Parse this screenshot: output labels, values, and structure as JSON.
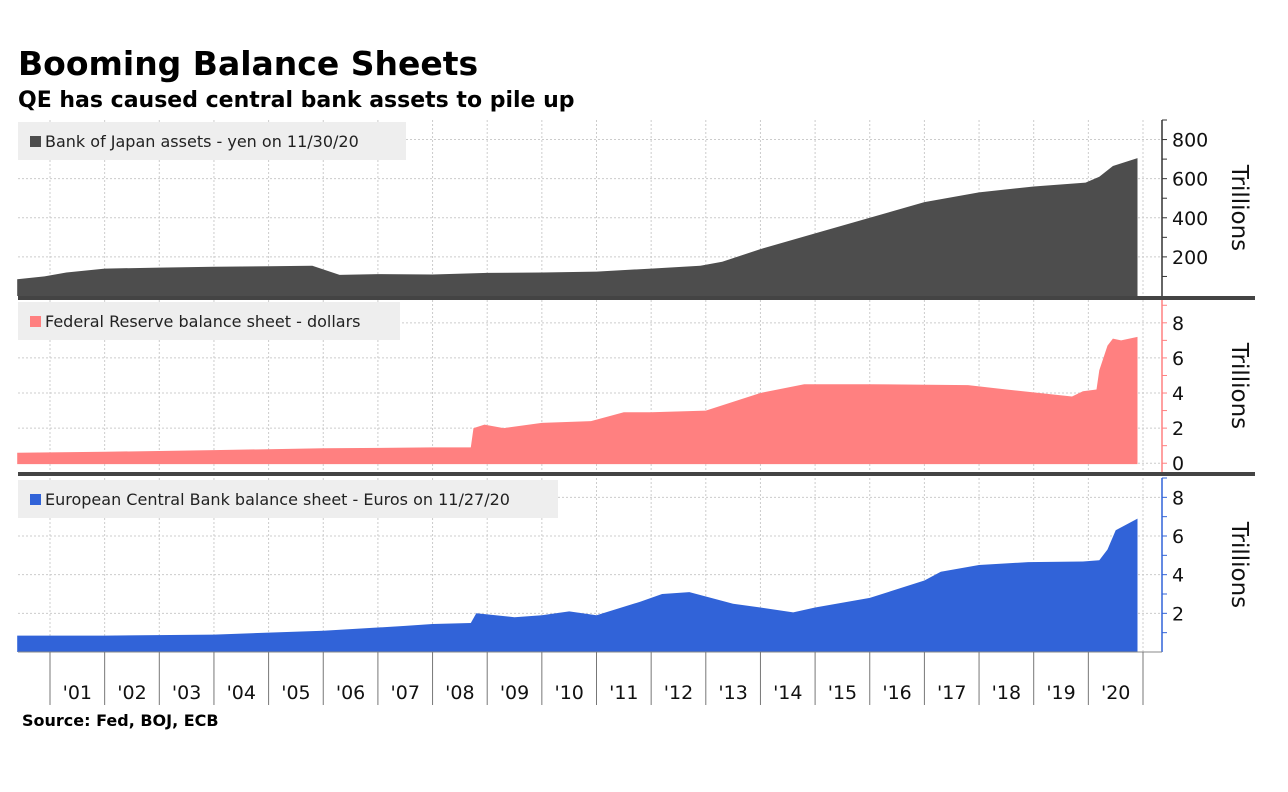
{
  "title": "Booming Balance Sheets",
  "subtitle": "QE has caused central bank assets to pile up",
  "source": "Source: Fed, BOJ, ECB",
  "chart_data": [
    {
      "type": "area",
      "legend": "Bank of Japan assets - yen on 11/30/20",
      "unit_label": "Trillions",
      "color": "#4d4d4d",
      "axis_color": "#333333",
      "ylim": [
        0,
        900
      ],
      "yticks": [
        200,
        400,
        600,
        800
      ],
      "grid": true,
      "x": [
        2000.4,
        2000.9,
        2001.3,
        2002.0,
        2003.0,
        2004.0,
        2005.0,
        2005.8,
        2006.3,
        2007.0,
        2008.0,
        2009.0,
        2010.0,
        2011.0,
        2012.0,
        2012.9,
        2013.3,
        2014.0,
        2015.0,
        2016.0,
        2017.0,
        2018.0,
        2019.0,
        2019.95,
        2020.2,
        2020.45,
        2020.9
      ],
      "values": [
        86,
        100,
        120,
        140,
        145,
        150,
        152,
        155,
        108,
        112,
        110,
        118,
        120,
        125,
        140,
        155,
        175,
        240,
        320,
        400,
        480,
        530,
        560,
        580,
        610,
        665,
        705
      ]
    },
    {
      "type": "area",
      "legend": "Federal Reserve balance sheet - dollars",
      "unit_label": "Trillions",
      "color": "#ff8080",
      "axis_color": "#ff8080",
      "ylim": [
        -0.5,
        9.3
      ],
      "yticks": [
        0,
        2,
        4,
        6,
        8
      ],
      "grid": true,
      "x": [
        2000.4,
        2002.0,
        2004.0,
        2006.0,
        2008.0,
        2008.7,
        2008.75,
        2008.95,
        2009.3,
        2010.0,
        2010.9,
        2011.5,
        2012.0,
        2013.0,
        2014.0,
        2014.8,
        2016.0,
        2017.8,
        2018.5,
        2019.7,
        2019.9,
        2020.15,
        2020.2,
        2020.35,
        2020.45,
        2020.6,
        2020.9
      ],
      "values": [
        0.6,
        0.65,
        0.75,
        0.85,
        0.9,
        0.9,
        2.0,
        2.2,
        2.0,
        2.3,
        2.4,
        2.9,
        2.9,
        3.0,
        4.0,
        4.5,
        4.5,
        4.45,
        4.2,
        3.8,
        4.1,
        4.2,
        5.3,
        6.7,
        7.1,
        7.0,
        7.2
      ]
    },
    {
      "type": "area",
      "legend": "European Central Bank balance sheet - Euros on 11/27/20",
      "unit_label": "Trillions",
      "color": "#3163d8",
      "axis_color": "#3163d8",
      "ylim": [
        0,
        9
      ],
      "yticks": [
        2,
        4,
        6,
        8
      ],
      "grid": true,
      "x": [
        2000.4,
        2002.0,
        2004.0,
        2006.0,
        2007.5,
        2008.0,
        2008.7,
        2008.8,
        2009.5,
        2010.0,
        2010.5,
        2011.0,
        2011.8,
        2012.2,
        2012.7,
        2013.5,
        2014.0,
        2014.6,
        2015.0,
        2016.0,
        2017.0,
        2017.3,
        2018.0,
        2018.9,
        2019.9,
        2020.2,
        2020.35,
        2020.5,
        2020.9
      ],
      "values": [
        0.85,
        0.85,
        0.9,
        1.1,
        1.35,
        1.45,
        1.5,
        2.0,
        1.8,
        1.9,
        2.1,
        1.9,
        2.6,
        3.0,
        3.1,
        2.5,
        2.3,
        2.05,
        2.3,
        2.8,
        3.7,
        4.15,
        4.5,
        4.65,
        4.68,
        4.75,
        5.3,
        6.3,
        6.9
      ]
    }
  ],
  "x_axis": {
    "tick_labels": [
      "'01",
      "'02",
      "'03",
      "'04",
      "'05",
      "'06",
      "'07",
      "'08",
      "'09",
      "'10",
      "'11",
      "'12",
      "'13",
      "'14",
      "'15",
      "'16",
      "'17",
      "'18",
      "'19",
      "'20"
    ],
    "xlim": [
      2000.4,
      2021.0
    ]
  }
}
